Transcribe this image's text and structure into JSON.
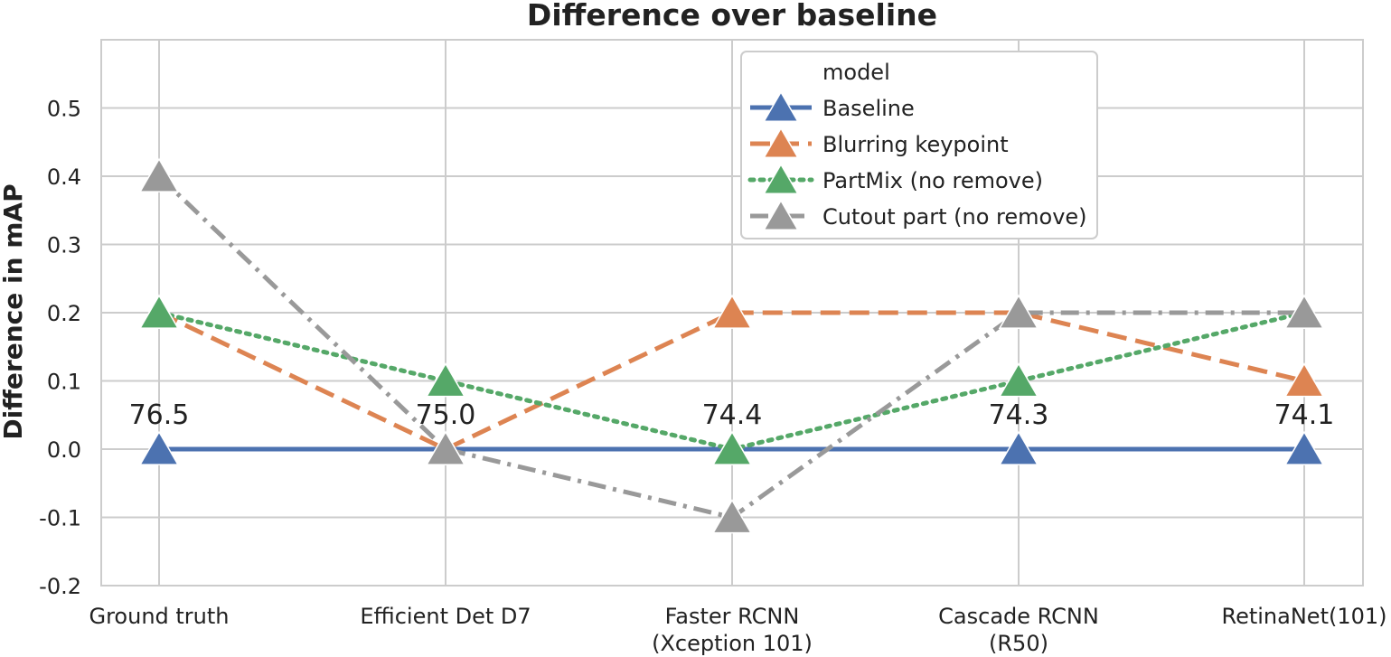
{
  "chart_data": {
    "type": "line",
    "title": "Difference over baseline",
    "xlabel": "",
    "ylabel": "Difference in mAP",
    "ylim": [
      -0.2,
      0.6
    ],
    "yticks": [
      "-0.2",
      "-0.1",
      "0.0",
      "0.1",
      "0.2",
      "0.3",
      "0.4",
      "0.5"
    ],
    "yticks_values": [
      -0.2,
      -0.1,
      0.0,
      0.1,
      0.2,
      0.3,
      0.4,
      0.5
    ],
    "categories": [
      [
        "Ground truth"
      ],
      [
        "Efficient Det D7"
      ],
      [
        "Faster RCNN",
        "(Xception 101)"
      ],
      [
        "Cascade RCNN",
        "(R50)"
      ],
      [
        "RetinaNet(101)"
      ]
    ],
    "grid": true,
    "legend": {
      "title": "model",
      "position": "top-center"
    },
    "series": [
      {
        "name": "Baseline",
        "values": [
          0.0,
          0.0,
          0.0,
          0.0,
          0.0
        ],
        "color": "#4c72b0",
        "dash": "solid"
      },
      {
        "name": "Blurring keypoint",
        "values": [
          0.2,
          0.0,
          0.2,
          0.2,
          0.1
        ],
        "color": "#dd8452",
        "dash": "dashed"
      },
      {
        "name": "PartMix (no remove)",
        "values": [
          0.2,
          0.1,
          0.0,
          0.1,
          0.2
        ],
        "color": "#55a868",
        "dash": "dotted"
      },
      {
        "name": "Cutout part (no remove)",
        "values": [
          0.4,
          0.0,
          -0.1,
          0.2,
          0.2
        ],
        "color": "#999999",
        "dash": "dashdot"
      }
    ],
    "annotations": [
      "76.5",
      "75.0",
      "74.4",
      "74.3",
      "74.1"
    ]
  }
}
